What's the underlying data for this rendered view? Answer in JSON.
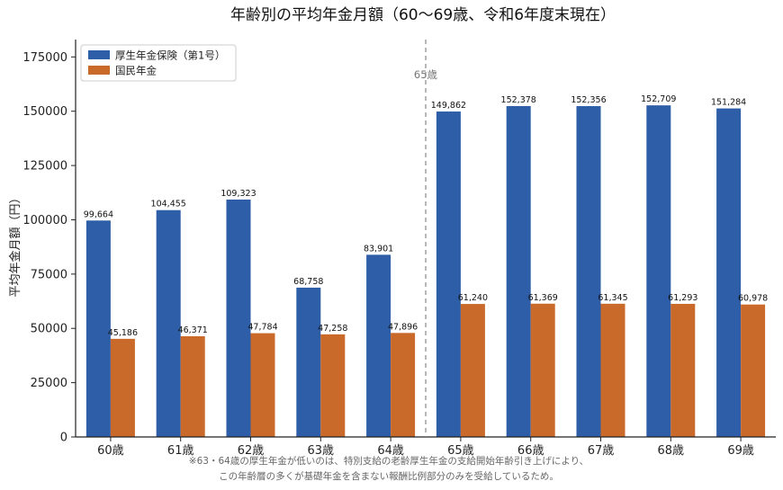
{
  "chart_data": {
    "type": "bar",
    "title": "年齢別の平均年金月額（60〜69歳、令和6年度末現在）",
    "ylabel": "平均年金月額（円）",
    "xlabel": "",
    "ylim": [
      0,
      183000
    ],
    "yticks": [
      0,
      25000,
      50000,
      75000,
      100000,
      125000,
      150000,
      175000
    ],
    "categories": [
      "60歳",
      "61歳",
      "62歳",
      "63歳",
      "64歳",
      "65歳",
      "66歳",
      "67歳",
      "68歳",
      "69歳"
    ],
    "series": [
      {
        "name": "厚生年金保険（第1号）",
        "color": "#2e5ea8",
        "values": [
          99664,
          104455,
          109323,
          68758,
          83901,
          149862,
          152378,
          152356,
          152709,
          151284
        ],
        "labels": [
          "99,664",
          "104,455",
          "109,323",
          "68,758",
          "83,901",
          "149,862",
          "152,378",
          "152,356",
          "152,709",
          "151,284"
        ]
      },
      {
        "name": "国民年金",
        "color": "#c96a2b",
        "values": [
          45186,
          46371,
          47784,
          47258,
          47896,
          61240,
          61369,
          61345,
          61293,
          60978
        ],
        "labels": [
          "45,186",
          "46,371",
          "47,784",
          "47,258",
          "47,896",
          "61,240",
          "61,369",
          "61,345",
          "61,293",
          "60,978"
        ]
      }
    ],
    "divider": {
      "label": "65歳",
      "between": [
        "64歳",
        "65歳"
      ]
    },
    "legend_position": "top-left",
    "grid": false,
    "notes": [
      "※63・64歳の厚生年金が低いのは、特別支給の老齢厚生年金の支給開始年齢引き上げにより、",
      "この年齢層の多くが基礎年金を含まない報酬比例部分のみを受給しているため。"
    ]
  }
}
